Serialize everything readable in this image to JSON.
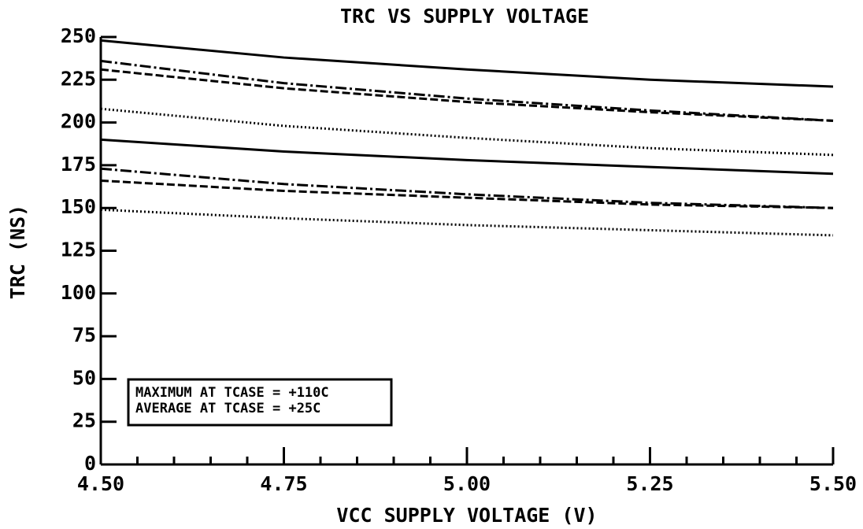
{
  "chart_data": {
    "type": "line",
    "title": "TRC  VS SUPPLY VOLTAGE",
    "xlabel": "VCC SUPPLY VOLTAGE (V)",
    "ylabel": "TRC  (NS)",
    "x": [
      4.5,
      4.75,
      5.0,
      5.25,
      5.5
    ],
    "series": [
      {
        "color": "#000000",
        "style": "solid",
        "values": [
          248,
          238,
          231,
          225,
          221
        ]
      },
      {
        "color": "#000000",
        "style": "dashdot",
        "values": [
          236,
          223,
          214,
          207,
          201
        ]
      },
      {
        "color": "#000000",
        "style": "dashed",
        "values": [
          231,
          220,
          212,
          206,
          201
        ]
      },
      {
        "color": "#000000",
        "style": "dotted",
        "values": [
          208,
          198,
          191,
          185,
          181
        ]
      },
      {
        "color": "#000000",
        "style": "solid",
        "values": [
          190,
          183,
          178,
          174,
          170
        ]
      },
      {
        "color": "#000000",
        "style": "dashdot",
        "values": [
          173,
          164,
          158,
          153,
          150
        ]
      },
      {
        "color": "#000000",
        "style": "dashed",
        "values": [
          166,
          160,
          156,
          152,
          150
        ]
      },
      {
        "color": "#000000",
        "style": "dotted",
        "values": [
          149,
          144,
          140,
          137,
          134
        ]
      }
    ],
    "annotations": [
      "MAXIMUM AT TCASE = +110C",
      "AVERAGE AT TCASE = +25C"
    ],
    "xlim": [
      4.5,
      5.5
    ],
    "xticks": [
      {
        "value": 4.5,
        "label": "4.50"
      },
      4.75,
      {
        "value": 5.0,
        "label": "5.00"
      },
      5.25,
      {
        "value": 5.5,
        "label": "5.50"
      }
    ],
    "xminor_ticks": [
      4.55,
      4.6,
      4.65,
      4.7,
      4.8,
      4.85,
      4.9,
      4.95,
      5.05,
      5.1,
      5.15,
      5.2,
      5.3,
      5.35,
      5.4,
      5.45
    ],
    "ylim": [
      0,
      250
    ],
    "yticks": [
      0,
      25,
      50,
      75,
      100,
      125,
      150,
      175,
      200,
      225,
      250
    ],
    "grid": false
  }
}
